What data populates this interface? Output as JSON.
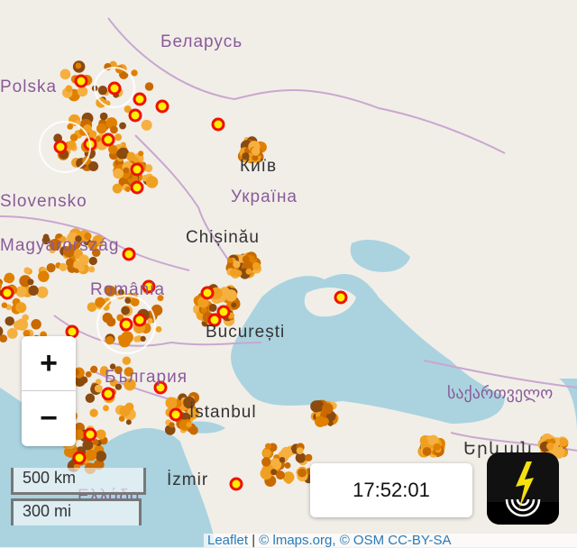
{
  "map": {
    "colors": {
      "land": "#f1eee8",
      "water": "#aad3df",
      "border": "#c9a7cf",
      "strike_recent": "#ffee00",
      "strike_ring": "#ee1100",
      "strike_old": "#e08000"
    },
    "country_labels": [
      "Беларусь",
      "Polska",
      "Україна",
      "Slovensko",
      "Magyarország",
      "România",
      "България",
      "Ελλάδα",
      "საქართველო"
    ],
    "city_labels": [
      "Київ",
      "Chișinău",
      "București",
      "İstanbul",
      "İzmir",
      "Երևան"
    ]
  },
  "zoom_control": {
    "zoom_in": "+",
    "zoom_out": "−"
  },
  "scale": {
    "metric": "500 km",
    "imperial": "300 mi"
  },
  "clock": {
    "time": "17:52:01"
  },
  "app_icon": "lightning-radar-icon",
  "attribution": {
    "leaflet": "Leaflet",
    "sep": " | ",
    "text": "© lmaps.org, © OSM CC-BY-SA"
  }
}
